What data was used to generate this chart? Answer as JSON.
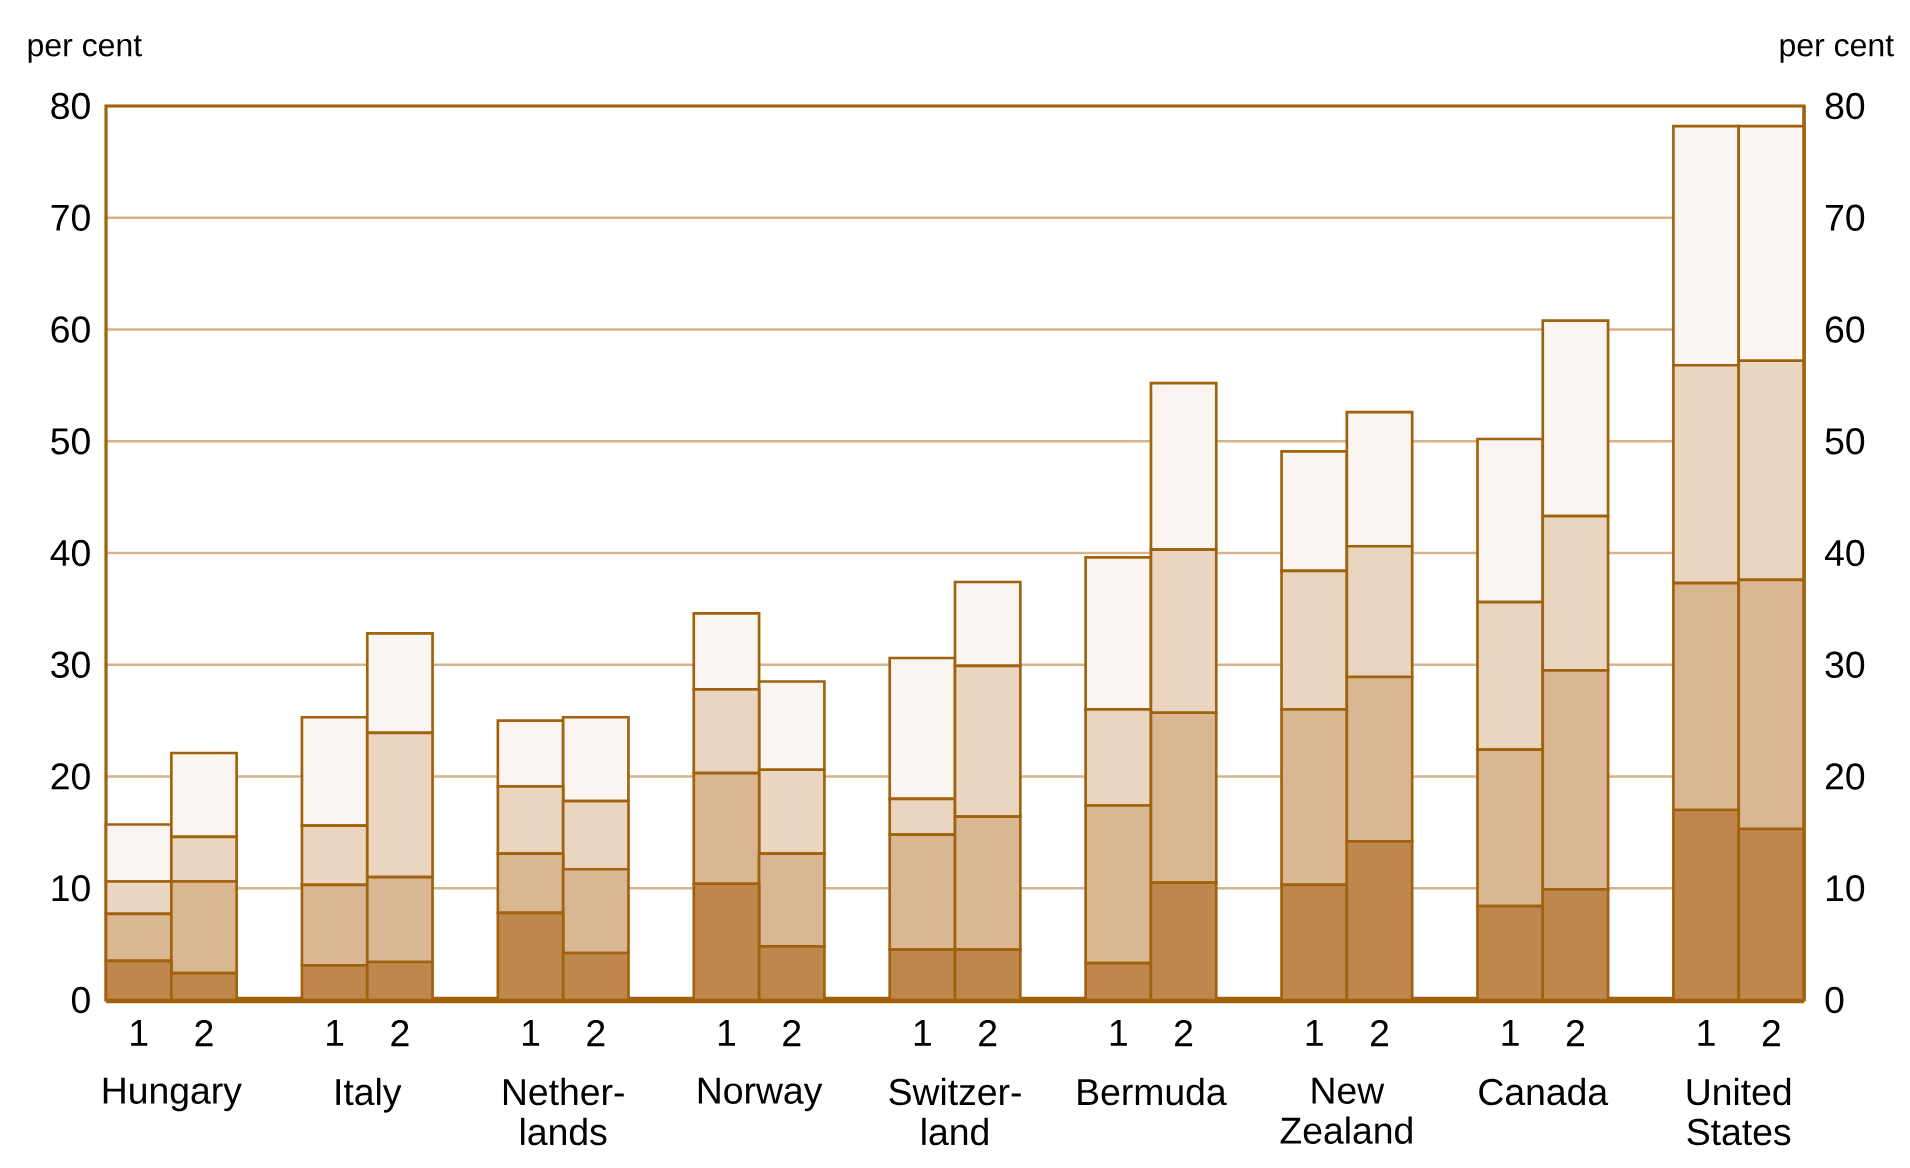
{
  "chart_data": {
    "type": "bar",
    "stacked": true,
    "ylabel": "per cent",
    "y2label": "per cent",
    "categories": [
      "1",
      "2",
      "1",
      "2",
      "1",
      "2",
      "1",
      "2",
      "1",
      "2",
      "1",
      "2",
      "1",
      "2",
      "1",
      "2",
      "1",
      "2"
    ],
    "annotations": [
      "Hungary",
      "Italy",
      "Nether- lands",
      "Norway",
      "Switzer- land",
      "Bermuda",
      "New Zealand",
      "Canada",
      "United States"
    ],
    "series": [
      {
        "color": "#bf874d",
        "values": [
          3.5,
          2.4,
          3.1,
          3.4,
          7.8,
          4.2,
          10.4,
          4.8,
          4.5,
          4.5,
          3.3,
          10.5,
          10.3,
          14.2,
          8.4,
          9.9,
          17.0,
          15.3
        ]
      },
      {
        "color": "#dab793",
        "values": [
          4.2,
          8.2,
          7.2,
          7.6,
          5.3,
          7.5,
          9.9,
          8.3,
          10.3,
          11.9,
          14.1,
          15.2,
          15.7,
          14.7,
          14.0,
          19.6,
          20.3,
          22.3
        ]
      },
      {
        "color": "#ead5c1",
        "values": [
          2.9,
          4.0,
          5.3,
          12.9,
          6.0,
          6.1,
          7.5,
          7.5,
          3.2,
          13.5,
          8.6,
          14.6,
          12.4,
          11.7,
          13.2,
          13.8,
          19.5,
          19.6
        ]
      },
      {
        "color": "#faf5f0",
        "values": [
          5.1,
          7.5,
          9.7,
          8.9,
          5.9,
          7.5,
          6.8,
          7.9,
          12.6,
          7.5,
          13.6,
          14.9,
          10.7,
          12.0,
          14.6,
          17.5,
          21.4,
          21.0
        ]
      }
    ],
    "ylim": [
      0,
      80
    ],
    "yticks": [
      0,
      10,
      20,
      30,
      40,
      50,
      60,
      70,
      80
    ],
    "y2lim": [
      0,
      80
    ],
    "y2ticks": [
      0,
      10,
      20,
      30,
      40,
      50,
      60,
      70,
      80
    ],
    "grid": "y"
  }
}
